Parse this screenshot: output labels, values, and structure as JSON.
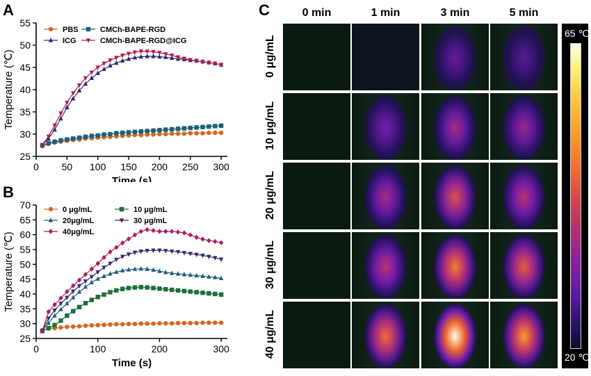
{
  "panels": {
    "a": "A",
    "b": "B",
    "c": "C"
  },
  "chart_data": [
    {
      "type": "line",
      "xlabel": "Time (s)",
      "ylabel": "Temperature (℃)",
      "xlim": [
        0,
        310
      ],
      "ylim": [
        25,
        55
      ],
      "xticks": [
        "0",
        "50",
        "100",
        "150",
        "200",
        "250",
        "300"
      ],
      "yticks": [
        "25",
        "30",
        "35",
        "40",
        "45",
        "50",
        "55"
      ],
      "legend": "top-left",
      "x": [
        10,
        20,
        30,
        40,
        50,
        60,
        70,
        80,
        90,
        100,
        110,
        120,
        130,
        140,
        150,
        160,
        170,
        180,
        190,
        200,
        210,
        220,
        230,
        240,
        250,
        260,
        270,
        280,
        290,
        300
      ],
      "series": [
        {
          "name": "PBS",
          "color": "#d2691e",
          "marker": "circle",
          "values": [
            27.3,
            27.8,
            28.1,
            28.3,
            28.5,
            28.7,
            28.8,
            29.0,
            29.1,
            29.2,
            29.3,
            29.4,
            29.5,
            29.6,
            29.7,
            29.8,
            29.8,
            29.9,
            29.9,
            30.0,
            30.0,
            30.1,
            30.1,
            30.1,
            30.2,
            30.2,
            30.2,
            30.3,
            30.3,
            30.3
          ]
        },
        {
          "name": "ICG",
          "color": "#2c2a6e",
          "marker": "triangle",
          "values": [
            27.5,
            29.0,
            31.0,
            33.5,
            36.0,
            38.0,
            39.8,
            41.3,
            42.6,
            43.7,
            44.6,
            45.4,
            46.0,
            46.5,
            46.9,
            47.2,
            47.4,
            47.5,
            47.5,
            47.4,
            47.3,
            47.1,
            46.9,
            46.8,
            46.6,
            46.5,
            46.3,
            46.1,
            45.9,
            45.6
          ]
        },
        {
          "name": "CMCh-BAPE-RGD",
          "color": "#1f5f78",
          "marker": "square",
          "values": [
            27.5,
            28.0,
            28.3,
            28.6,
            28.8,
            29.0,
            29.2,
            29.4,
            29.6,
            29.7,
            29.9,
            30.0,
            30.2,
            30.3,
            30.4,
            30.5,
            30.6,
            30.7,
            30.8,
            30.9,
            31.0,
            31.1,
            31.2,
            31.3,
            31.4,
            31.5,
            31.6,
            31.7,
            31.8,
            31.9
          ]
        },
        {
          "name": "CMCh-BAPE-RGD@ICG",
          "color": "#b01c4a",
          "marker": "triangle-down",
          "values": [
            27.6,
            29.5,
            32.0,
            34.7,
            37.1,
            39.2,
            41.0,
            42.6,
            43.9,
            45.0,
            45.9,
            46.6,
            47.2,
            47.7,
            48.1,
            48.4,
            48.6,
            48.6,
            48.5,
            48.3,
            48.0,
            47.7,
            47.3,
            47.0,
            46.7,
            46.5,
            46.3,
            46.1,
            45.9,
            45.6
          ]
        }
      ]
    },
    {
      "type": "line",
      "xlabel": "Time (s)",
      "ylabel": "Temperature (℃)",
      "xlim": [
        0,
        310
      ],
      "ylim": [
        25,
        70
      ],
      "xticks": [
        "0",
        "100",
        "200",
        "300"
      ],
      "yticks": [
        "25",
        "30",
        "35",
        "40",
        "45",
        "50",
        "55",
        "60",
        "65",
        "70"
      ],
      "legend": "top-left",
      "x": [
        10,
        20,
        30,
        40,
        50,
        60,
        70,
        80,
        90,
        100,
        110,
        120,
        130,
        140,
        150,
        160,
        170,
        180,
        190,
        200,
        210,
        220,
        230,
        240,
        250,
        260,
        270,
        280,
        290,
        300
      ],
      "series": [
        {
          "name": "0 μg/mL",
          "color": "#d2691e",
          "marker": "circle",
          "values": [
            27.8,
            28.3,
            28.5,
            28.7,
            28.9,
            29.0,
            29.1,
            29.3,
            29.4,
            29.5,
            29.6,
            29.7,
            29.8,
            29.8,
            29.9,
            29.9,
            30.0,
            30.0,
            30.0,
            30.1,
            30.1,
            30.1,
            30.2,
            30.2,
            30.2,
            30.2,
            30.3,
            30.3,
            30.3,
            30.3
          ]
        },
        {
          "name": "10 μg/mL",
          "color": "#1d6e3c",
          "marker": "square",
          "values": [
            27.5,
            28.5,
            29.5,
            31.0,
            32.7,
            34.2,
            35.6,
            36.9,
            38.0,
            39.0,
            39.8,
            40.6,
            41.2,
            41.7,
            42.0,
            42.2,
            42.3,
            42.2,
            42.0,
            41.8,
            41.6,
            41.4,
            41.2,
            41.0,
            40.8,
            40.6,
            40.4,
            40.2,
            40.0,
            39.8
          ]
        },
        {
          "name": "20μg/mL",
          "color": "#1e5f7a",
          "marker": "triangle",
          "values": [
            27.6,
            30.2,
            32.7,
            34.8,
            36.8,
            38.8,
            40.7,
            42.4,
            43.9,
            45.1,
            46.0,
            46.8,
            47.4,
            47.9,
            48.2,
            48.4,
            48.5,
            48.4,
            48.1,
            47.7,
            47.3,
            47.0,
            46.8,
            46.6,
            46.4,
            46.2,
            46.0,
            45.8,
            45.6,
            45.3
          ]
        },
        {
          "name": "30 μg/mL",
          "color": "#3a2a6a",
          "marker": "triangle-down",
          "values": [
            27.6,
            31.8,
            34.5,
            36.8,
            38.8,
            40.9,
            42.7,
            44.3,
            45.8,
            47.4,
            48.9,
            50.3,
            51.6,
            52.6,
            53.4,
            54.0,
            54.4,
            54.6,
            54.7,
            54.7,
            54.6,
            54.4,
            54.2,
            53.9,
            53.6,
            53.3,
            53.0,
            52.6,
            52.2,
            51.7
          ]
        },
        {
          "name": "40μg/mL",
          "color": "#b01c5a",
          "marker": "diamond",
          "values": [
            27.5,
            34.0,
            36.4,
            38.6,
            40.8,
            42.8,
            44.7,
            46.6,
            48.4,
            50.3,
            52.3,
            54.2,
            55.7,
            57.2,
            58.6,
            59.9,
            61.1,
            61.7,
            61.4,
            61.1,
            61.1,
            61.1,
            60.9,
            60.6,
            59.9,
            59.1,
            58.5,
            58.0,
            57.7,
            57.3
          ]
        }
      ]
    }
  ],
  "thermal": {
    "columns": [
      "0 min",
      "1 min",
      "3 min",
      "5 min"
    ],
    "rows": [
      "0 μg/mL",
      "10 μg/mL",
      "20 μg/mL",
      "30 μg/mL",
      "40 μg/mL"
    ],
    "intensity": [
      [
        0.0,
        0.02,
        0.35,
        0.32
      ],
      [
        0.0,
        0.4,
        0.5,
        0.47
      ],
      [
        0.0,
        0.5,
        0.65,
        0.55
      ],
      [
        0.0,
        0.55,
        0.75,
        0.68
      ],
      [
        0.0,
        0.72,
        1.0,
        0.8
      ]
    ],
    "scale_max": "65 ℃",
    "scale_min": "20 ℃"
  }
}
